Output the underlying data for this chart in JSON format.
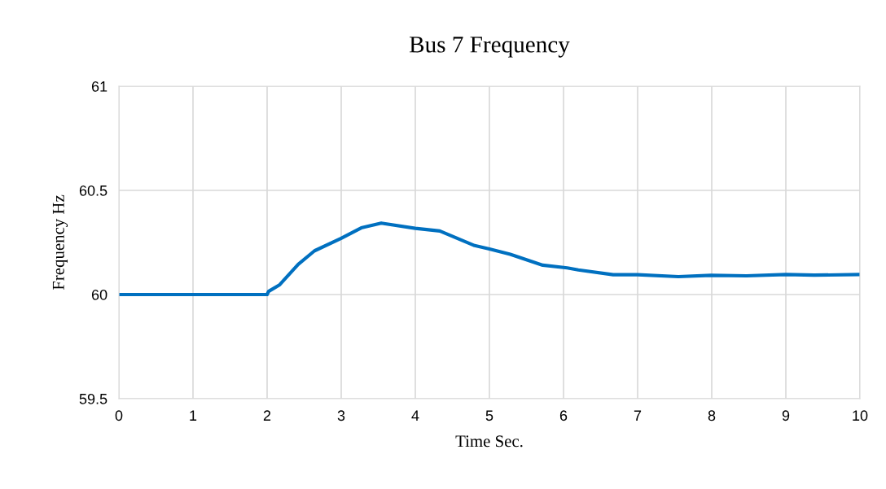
{
  "chart_data": {
    "type": "line",
    "title": "Bus 7 Frequency",
    "xlabel": "Time Sec.",
    "ylabel": "Frequency Hz",
    "series": [
      {
        "color": "#0070c0",
        "x": [
          0,
          1,
          2,
          2.02,
          2.17,
          2.42,
          2.64,
          3.0,
          3.27,
          3.54,
          4.0,
          4.33,
          4.8,
          5.0,
          5.28,
          5.72,
          6.05,
          6.2,
          6.67,
          7.0,
          7.55,
          7.99,
          8.47,
          9.0,
          9.38,
          10
        ],
        "values": [
          60.0,
          60.0,
          60.0,
          60.015,
          60.047,
          60.145,
          60.21,
          60.27,
          60.32,
          60.343,
          60.318,
          60.305,
          60.235,
          60.219,
          60.193,
          60.141,
          60.128,
          60.118,
          60.095,
          60.095,
          60.086,
          60.092,
          60.09,
          60.096,
          60.093,
          60.096
        ]
      }
    ],
    "xlim": [
      0,
      10
    ],
    "xticks": [
      0,
      1,
      2,
      3,
      4,
      5,
      6,
      7,
      8,
      9,
      10
    ],
    "ylim": [
      59.5,
      61
    ],
    "yticks": [
      59.5,
      60,
      60.5,
      61
    ],
    "grid": true,
    "legend": false,
    "marker": "none",
    "line_style": "solid"
  }
}
